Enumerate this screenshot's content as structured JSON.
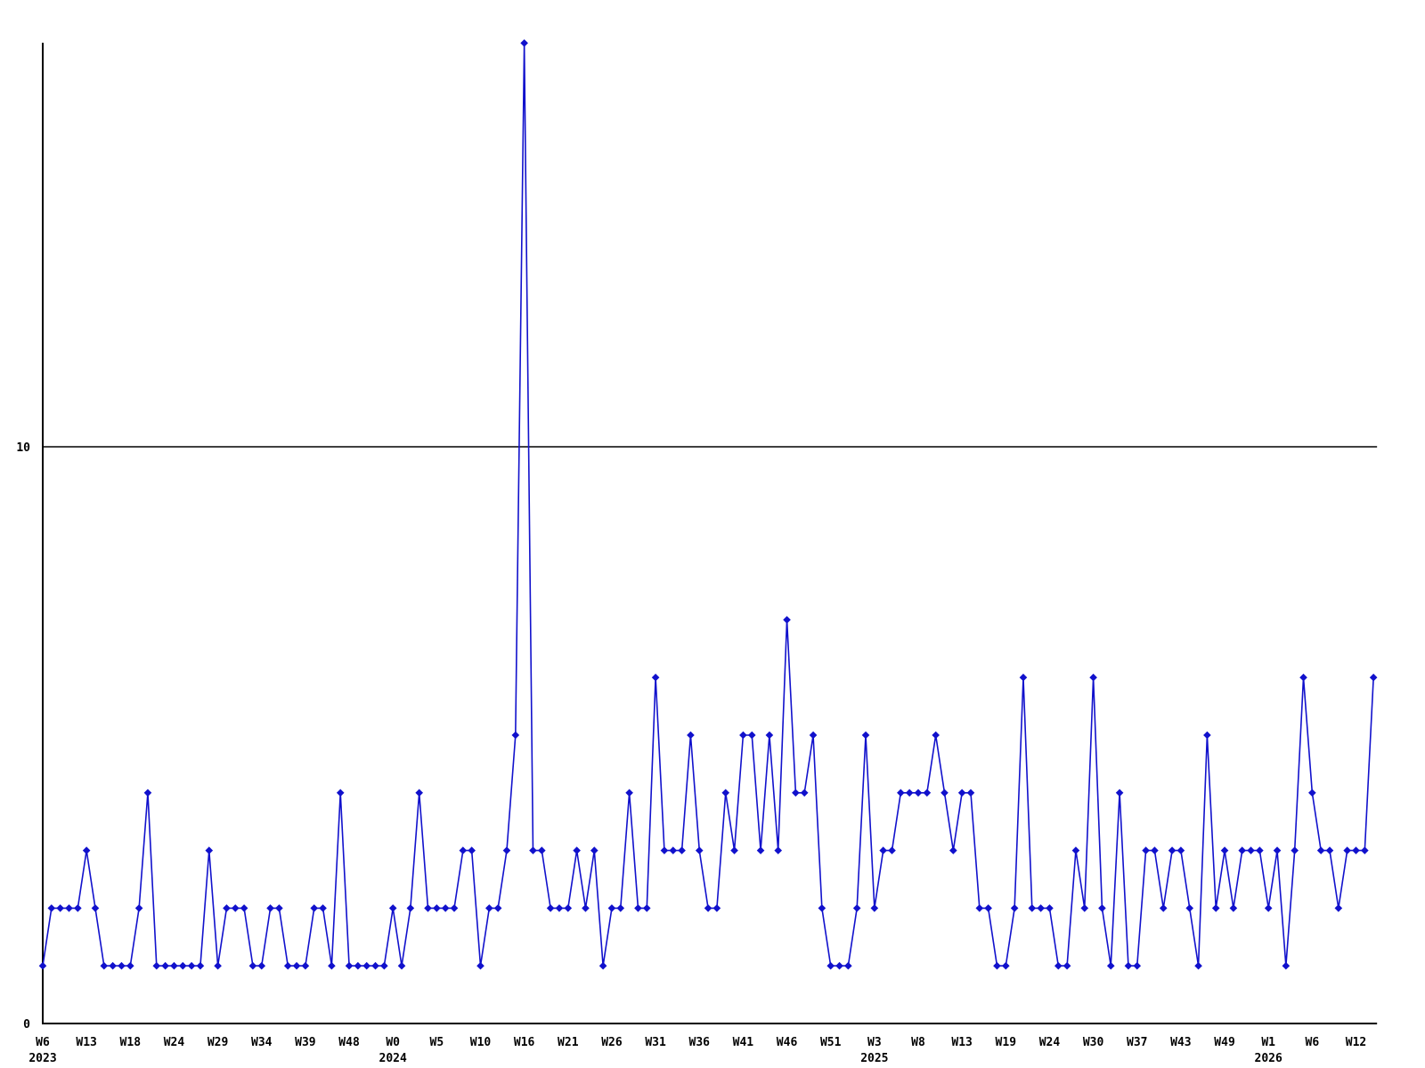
{
  "chart_data": {
    "type": "line",
    "title": "",
    "xlabel": "",
    "ylabel": "",
    "x_unit": "ISO week",
    "legend": null,
    "grid": "single horizontal reference line at y=10",
    "ylim": [
      0,
      17.2
    ],
    "y_tick_values": [
      0,
      10
    ],
    "y_tick_labels": [
      "0",
      "10"
    ],
    "marker": "diamond",
    "series_color": "#1111cc",
    "axis_color": "#000000",
    "x_tick_every": 5,
    "x_tick_labels": [
      {
        "label": "W6",
        "year": "2023"
      },
      {
        "label": "W13"
      },
      {
        "label": "W18"
      },
      {
        "label": "W24"
      },
      {
        "label": "W29"
      },
      {
        "label": "W34"
      },
      {
        "label": "W39"
      },
      {
        "label": "W48"
      },
      {
        "label": "W0",
        "year": "2024"
      },
      {
        "label": "W5"
      },
      {
        "label": "W10"
      },
      {
        "label": "W16"
      },
      {
        "label": "W21"
      },
      {
        "label": "W26"
      },
      {
        "label": "W31"
      },
      {
        "label": "W36"
      },
      {
        "label": "W41"
      },
      {
        "label": "W46"
      },
      {
        "label": "W51"
      },
      {
        "label": "W3",
        "year": "2025"
      },
      {
        "label": "W8"
      },
      {
        "label": "W13"
      },
      {
        "label": "W19"
      },
      {
        "label": "W24"
      },
      {
        "label": "W30"
      },
      {
        "label": "W37"
      },
      {
        "label": "W43"
      },
      {
        "label": "W49"
      },
      {
        "label": "W1",
        "year": "2026"
      },
      {
        "label": "W6"
      },
      {
        "label": "W12"
      }
    ],
    "values": [
      1,
      2,
      2,
      2,
      2,
      3,
      2,
      1,
      1,
      1,
      1,
      2,
      4,
      1,
      1,
      1,
      1,
      1,
      1,
      3,
      1,
      2,
      2,
      2,
      1,
      1,
      2,
      2,
      1,
      1,
      1,
      2,
      2,
      1,
      4,
      1,
      1,
      1,
      1,
      1,
      2,
      1,
      2,
      4,
      2,
      2,
      2,
      2,
      3,
      3,
      1,
      2,
      2,
      3,
      5,
      17,
      3,
      3,
      2,
      2,
      2,
      3,
      2,
      3,
      1,
      2,
      2,
      4,
      2,
      2,
      6,
      3,
      3,
      3,
      5,
      3,
      2,
      2,
      4,
      3,
      5,
      5,
      3,
      5,
      3,
      7,
      4,
      4,
      5,
      2,
      1,
      1,
      1,
      2,
      5,
      2,
      3,
      3,
      4,
      4,
      4,
      4,
      5,
      4,
      3,
      4,
      4,
      2,
      2,
      1,
      1,
      2,
      6,
      2,
      2,
      2,
      1,
      1,
      3,
      2,
      6,
      2,
      1,
      4,
      1,
      1,
      3,
      3,
      2,
      3,
      3,
      2,
      1,
      5,
      2,
      3,
      2,
      3,
      3,
      3,
      2,
      3,
      1,
      3,
      6,
      4,
      3,
      3,
      2,
      3,
      3,
      3,
      6
    ]
  }
}
